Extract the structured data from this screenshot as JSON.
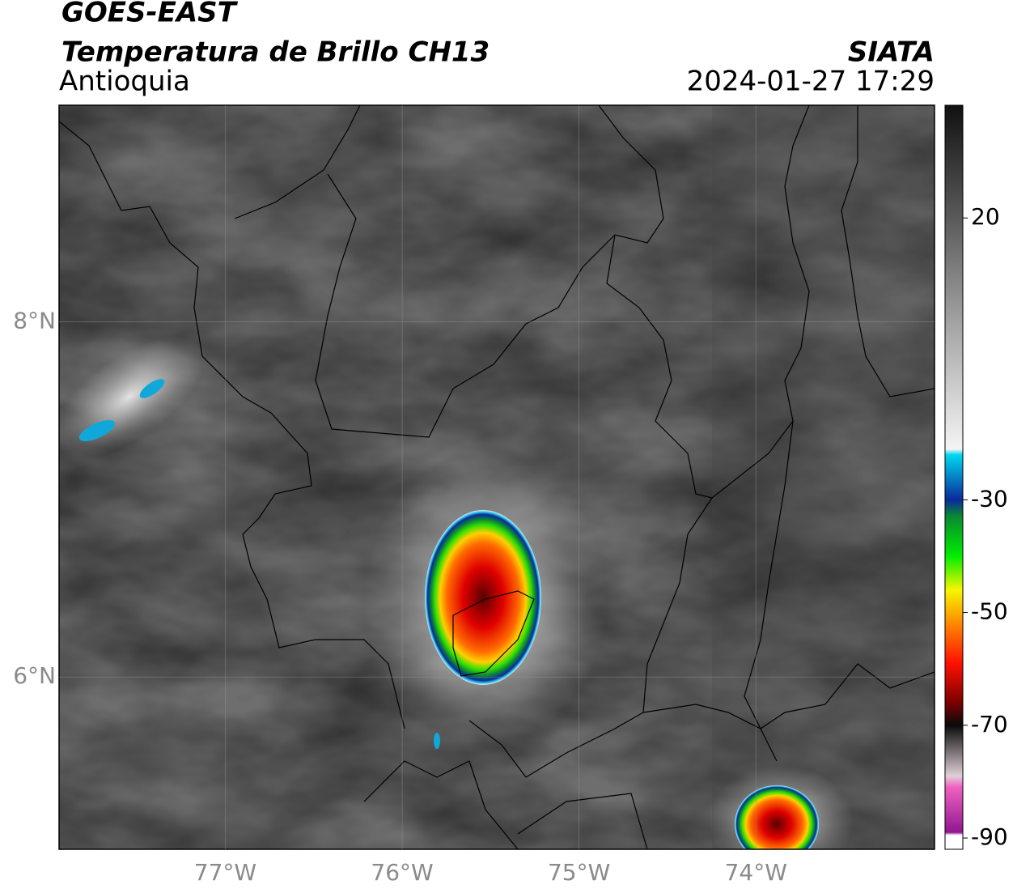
{
  "header": {
    "title": "GOES-EAST",
    "subtitle": "Temperatura de Brillo CH13",
    "region": "Antioquia",
    "source": "SIATA",
    "datetime": "2024-01-27 17:29"
  },
  "map": {
    "lon_range": [
      -77.94,
      -72.99
    ],
    "lat_range": [
      5.03,
      9.22
    ],
    "lon_ticks": [
      {
        "value": -77,
        "label": "77°W"
      },
      {
        "value": -76,
        "label": "76°W"
      },
      {
        "value": -75,
        "label": "75°W"
      },
      {
        "value": -74,
        "label": "74°W"
      }
    ],
    "lat_ticks": [
      {
        "value": 8,
        "label": "8°N"
      },
      {
        "value": 6,
        "label": "6°N"
      }
    ],
    "grid": true
  },
  "colorbar": {
    "range": [
      -92,
      40
    ],
    "ticks": [
      20,
      -30,
      -50,
      -70,
      -90
    ],
    "stops": [
      {
        "value": 40,
        "color": "#111111"
      },
      {
        "value": 20,
        "color": "#5a5a5a"
      },
      {
        "value": 0,
        "color": "#a8a8a8"
      },
      {
        "value": -21,
        "color": "#f4f4f4"
      },
      {
        "value": -22,
        "color": "#00d8f0"
      },
      {
        "value": -30,
        "color": "#0a2a9a"
      },
      {
        "value": -33,
        "color": "#0a8a30"
      },
      {
        "value": -40,
        "color": "#00ee00"
      },
      {
        "value": -46,
        "color": "#f6f600"
      },
      {
        "value": -52,
        "color": "#ff8800"
      },
      {
        "value": -59,
        "color": "#ff1000"
      },
      {
        "value": -66,
        "color": "#7a0000"
      },
      {
        "value": -70,
        "color": "#0a0a0a"
      },
      {
        "value": -79,
        "color": "#e0d0d8"
      },
      {
        "value": -81,
        "color": "#f060c0"
      },
      {
        "value": -89,
        "color": "#901890"
      },
      {
        "value": -89.5,
        "color": "#ffffff"
      }
    ]
  }
}
